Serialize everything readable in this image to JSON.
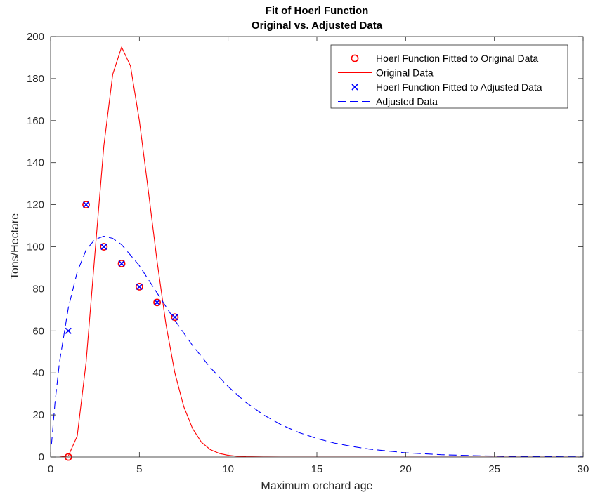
{
  "chart_data": {
    "type": "line",
    "title": "Fit of Hoerl Function",
    "subtitle": "Original vs. Adjusted Data",
    "xlabel": "Maximum orchard age",
    "ylabel": "Tons/Hectare",
    "xlim": [
      0,
      30
    ],
    "ylim": [
      0,
      200
    ],
    "xticks": [
      0,
      5,
      10,
      15,
      20,
      25,
      30
    ],
    "yticks": [
      0,
      20,
      40,
      60,
      80,
      100,
      120,
      140,
      160,
      180,
      200
    ],
    "grid": false,
    "legend_position": "top-right",
    "series": [
      {
        "name": "Hoerl Function Fitted to Original Data",
        "kind": "scatter",
        "marker": "circle",
        "color": "#ff0000",
        "x": [
          1,
          2,
          3,
          4,
          5,
          6,
          7
        ],
        "y": [
          0,
          120,
          100,
          92,
          81,
          73.5,
          66.5
        ]
      },
      {
        "name": "Original Data",
        "kind": "line",
        "line_style": "solid",
        "color": "#ff0000",
        "x": [
          0.5,
          1,
          1.5,
          2,
          2.5,
          3,
          3.5,
          4,
          4.5,
          5,
          5.5,
          6,
          6.5,
          7,
          7.5,
          8,
          8.5,
          9,
          9.5,
          10,
          10.5,
          11,
          12,
          13,
          14,
          15,
          20,
          25,
          30
        ],
        "y": [
          0,
          0.5,
          10,
          45,
          97,
          148,
          182,
          195,
          186,
          160,
          127,
          93,
          63,
          40,
          24,
          13.5,
          7,
          3.5,
          1.7,
          0.8,
          0.35,
          0.15,
          0.03,
          0,
          0,
          0,
          0,
          0,
          0
        ]
      },
      {
        "name": "Hoerl Function Fitted to Adjusted Data",
        "kind": "scatter",
        "marker": "x",
        "color": "#0000ff",
        "x": [
          1,
          2,
          3,
          4,
          5,
          6,
          7
        ],
        "y": [
          60,
          120,
          100,
          92,
          81,
          73.5,
          66.5
        ]
      },
      {
        "name": "Adjusted Data",
        "kind": "line",
        "line_style": "dashed",
        "color": "#0000ff",
        "x": [
          0.05,
          0.25,
          0.5,
          1,
          1.5,
          2,
          2.5,
          3,
          3.5,
          4,
          5,
          6,
          7,
          8,
          9,
          10,
          11,
          12,
          13,
          14,
          15,
          16,
          17,
          18,
          20,
          22,
          24,
          26,
          28,
          30
        ],
        "y": [
          6,
          26,
          45,
          71,
          88,
          98.5,
          103.5,
          105,
          104,
          101,
          91,
          78,
          65,
          53,
          42.5,
          33.5,
          26,
          20,
          15.3,
          11.6,
          8.8,
          6.6,
          5,
          3.7,
          2,
          1.1,
          0.6,
          0.3,
          0.15,
          0.08
        ]
      }
    ]
  }
}
